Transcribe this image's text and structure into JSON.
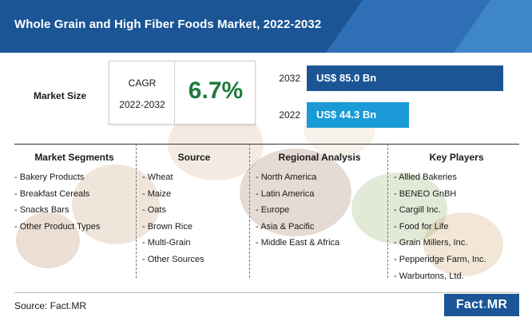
{
  "title": "Whole Grain and High Fiber Foods Market, 2022-2032",
  "market_size_label": "Market Size",
  "cagr": {
    "label": "CAGR",
    "period": "2022-2032",
    "value": "6.7%"
  },
  "colors": {
    "header": "#1b5596",
    "bar_2032": "#1b5596",
    "bar_2022": "#1a9ad6",
    "cagr_value": "#1e7a3c"
  },
  "chart_data": {
    "type": "bar",
    "orientation": "horizontal",
    "categories": [
      "2032",
      "2022"
    ],
    "values": [
      85.0,
      44.3
    ],
    "value_labels": [
      "US$ 85.0 Bn",
      "US$ 44.3 Bn"
    ],
    "unit": "US$ Bn",
    "title": "",
    "xlabel": "",
    "ylabel": ""
  },
  "segments": [
    {
      "heading": "Market Segments",
      "items": [
        "- Bakery Products",
        "- Breakfast Cereals",
        "- Snacks Bars",
        "- Other Product Types"
      ]
    },
    {
      "heading": "Source",
      "items": [
        "- Wheat",
        "- Maize",
        "- Oats",
        "- Brown Rice",
        "- Multi-Grain",
        "- Other Sources"
      ]
    },
    {
      "heading": "Regional Analysis",
      "items": [
        "- North America",
        "- Latin America",
        "- Europe",
        "- Asia & Pacific",
        "- Middle East & Africa"
      ]
    },
    {
      "heading": "Key Players",
      "items": [
        "- Allied Bakeries",
        "- BENEO GnBH",
        "- Cargill Inc.",
        "- Food for Life",
        "- Grain Millers, Inc.",
        "- Pepperidge Farm, Inc.",
        "- Warburtons, Ltd."
      ]
    }
  ],
  "source_text": "Source: Fact.MR",
  "logo": {
    "part1": "Fact",
    "dot": ".",
    "part2": "MR"
  }
}
